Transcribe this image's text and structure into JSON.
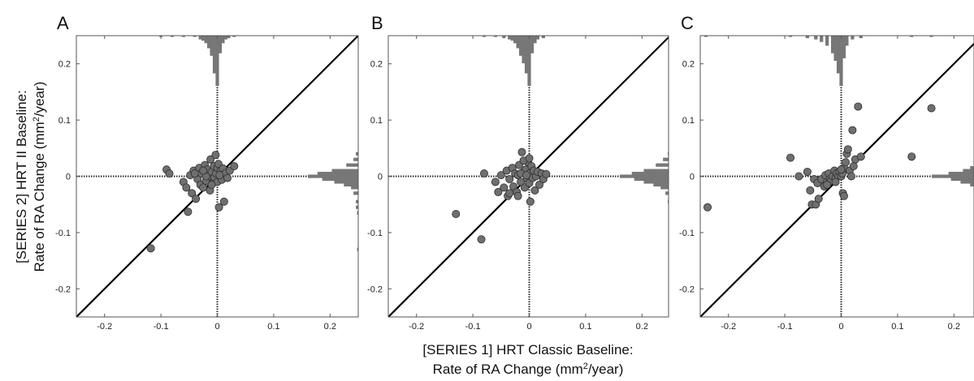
{
  "figure": {
    "x_title_line1": "[SERIES 1] HRT Classic Baseline:",
    "x_title_line2_prefix": "Rate of RA Change (mm",
    "x_title_line2_suffix": "/year)",
    "y_title_line1": "[SERIES 2] HRT II Baseline:",
    "y_title_line2_prefix": "Rate of RA Change (mm",
    "y_title_line2_suffix": "/year)",
    "unit_exponent": "2"
  },
  "chart_data": [
    {
      "type": "scatter",
      "panel_label": "A",
      "xlim": [
        -0.25,
        0.25
      ],
      "ylim": [
        -0.25,
        0.25
      ],
      "x_ticks": [
        -0.2,
        -0.1,
        0,
        0.1,
        0.2
      ],
      "y_ticks": [
        -0.2,
        -0.1,
        0,
        0.1,
        0.2
      ],
      "x_tick_labels": [
        "-0.2",
        "-0.1",
        "0",
        "0.1",
        "0.2"
      ],
      "y_tick_labels": [
        "-0.2",
        "-0.1",
        "0",
        "0.1",
        "0.2"
      ],
      "reference_line": "y = x",
      "grid": false,
      "points": [
        [
          -0.118,
          -0.128
        ],
        [
          -0.09,
          0.012
        ],
        [
          -0.085,
          0.005
        ],
        [
          -0.06,
          -0.01
        ],
        [
          -0.055,
          -0.02
        ],
        [
          -0.052,
          -0.063
        ],
        [
          -0.048,
          0.002
        ],
        [
          -0.045,
          -0.03
        ],
        [
          -0.042,
          0.01
        ],
        [
          -0.038,
          -0.04
        ],
        [
          -0.035,
          -0.005
        ],
        [
          -0.032,
          0.015
        ],
        [
          -0.03,
          -0.015
        ],
        [
          -0.028,
          0.005
        ],
        [
          -0.025,
          -0.02
        ],
        [
          -0.022,
          0.02
        ],
        [
          -0.02,
          -0.008
        ],
        [
          -0.018,
          0.012
        ],
        [
          -0.015,
          0.0
        ],
        [
          -0.013,
          -0.025
        ],
        [
          -0.012,
          0.03
        ],
        [
          -0.01,
          0.008
        ],
        [
          -0.008,
          -0.012
        ],
        [
          -0.006,
          0.018
        ],
        [
          -0.005,
          -0.002
        ],
        [
          -0.003,
          0.038
        ],
        [
          -0.002,
          0.005
        ],
        [
          0.0,
          -0.01
        ],
        [
          0.0,
          0.015
        ],
        [
          0.002,
          0.022
        ],
        [
          0.003,
          -0.055
        ],
        [
          0.005,
          0.0
        ],
        [
          0.006,
          0.01
        ],
        [
          0.008,
          -0.006
        ],
        [
          0.01,
          0.014
        ],
        [
          0.012,
          -0.045
        ],
        [
          0.015,
          0.006
        ],
        [
          0.018,
          -0.003
        ],
        [
          0.022,
          0.01
        ],
        [
          0.03,
          0.018
        ],
        [
          -0.02,
          0.0
        ],
        [
          -0.01,
          -0.015
        ],
        [
          -0.04,
          0.005
        ],
        [
          -0.025,
          0.01
        ],
        [
          0.004,
          0.002
        ]
      ],
      "top_histogram": [
        {
          "center": -0.1,
          "count": 1
        },
        {
          "center": -0.08,
          "count": 1
        },
        {
          "center": -0.06,
          "count": 1
        },
        {
          "center": -0.04,
          "count": 1
        },
        {
          "center": -0.03,
          "count": 3
        },
        {
          "center": -0.025,
          "count": 4
        },
        {
          "center": -0.02,
          "count": 6
        },
        {
          "center": -0.015,
          "count": 10
        },
        {
          "center": -0.01,
          "count": 16
        },
        {
          "center": -0.005,
          "count": 30
        },
        {
          "center": 0.0,
          "count": 40
        },
        {
          "center": 0.005,
          "count": 14
        },
        {
          "center": 0.01,
          "count": 6
        },
        {
          "center": 0.015,
          "count": 3
        },
        {
          "center": 0.02,
          "count": 2
        },
        {
          "center": 0.03,
          "count": 1
        }
      ],
      "right_histogram": [
        {
          "center": 0.04,
          "count": 2
        },
        {
          "center": 0.03,
          "count": 4
        },
        {
          "center": 0.02,
          "count": 10
        },
        {
          "center": 0.01,
          "count": 22
        },
        {
          "center": 0.005,
          "count": 34
        },
        {
          "center": 0.0,
          "count": 42
        },
        {
          "center": -0.005,
          "count": 30
        },
        {
          "center": -0.01,
          "count": 20
        },
        {
          "center": -0.015,
          "count": 12
        },
        {
          "center": -0.02,
          "count": 6
        },
        {
          "center": -0.03,
          "count": 4
        },
        {
          "center": -0.045,
          "count": 2
        },
        {
          "center": -0.055,
          "count": 2
        },
        {
          "center": -0.065,
          "count": 1
        },
        {
          "center": -0.13,
          "count": 1
        }
      ]
    },
    {
      "type": "scatter",
      "panel_label": "B",
      "xlim": [
        -0.25,
        0.25
      ],
      "ylim": [
        -0.25,
        0.25
      ],
      "x_ticks": [
        -0.2,
        -0.1,
        0,
        0.1,
        0.2
      ],
      "y_ticks": [
        -0.2,
        -0.1,
        0,
        0.1,
        0.2
      ],
      "x_tick_labels": [
        "-0.2",
        "-0.1",
        "0",
        "0.1",
        "0.2"
      ],
      "y_tick_labels": [
        "-0.2",
        "-0.1",
        "0",
        "0.1",
        "0.2"
      ],
      "reference_line": "y = x",
      "grid": false,
      "points": [
        [
          -0.13,
          -0.067
        ],
        [
          -0.085,
          -0.112
        ],
        [
          -0.08,
          0.005
        ],
        [
          -0.06,
          -0.01
        ],
        [
          -0.055,
          -0.028
        ],
        [
          -0.05,
          0.002
        ],
        [
          -0.045,
          -0.02
        ],
        [
          -0.04,
          0.01
        ],
        [
          -0.038,
          -0.035
        ],
        [
          -0.035,
          -0.005
        ],
        [
          -0.03,
          0.015
        ],
        [
          -0.028,
          -0.018
        ],
        [
          -0.025,
          0.005
        ],
        [
          -0.022,
          -0.028
        ],
        [
          -0.02,
          0.002
        ],
        [
          -0.018,
          0.02
        ],
        [
          -0.015,
          -0.01
        ],
        [
          -0.013,
          0.043
        ],
        [
          -0.01,
          0.008
        ],
        [
          -0.008,
          -0.02
        ],
        [
          -0.006,
          0.012
        ],
        [
          -0.004,
          -0.004
        ],
        [
          -0.002,
          0.025
        ],
        [
          0.0,
          -0.012
        ],
        [
          0.0,
          0.005
        ],
        [
          0.002,
          -0.045
        ],
        [
          0.004,
          0.018
        ],
        [
          0.006,
          -0.003
        ],
        [
          0.008,
          0.01
        ],
        [
          0.01,
          -0.025
        ],
        [
          0.012,
          0.0
        ],
        [
          0.015,
          0.008
        ],
        [
          0.018,
          -0.015
        ],
        [
          0.022,
          0.005
        ],
        [
          0.025,
          -0.005
        ],
        [
          0.03,
          0.004
        ],
        [
          -0.035,
          -0.03
        ],
        [
          -0.02,
          -0.035
        ],
        [
          -0.01,
          0.028
        ],
        [
          0.0,
          0.032
        ],
        [
          -0.015,
          0.005
        ],
        [
          -0.005,
          0.002
        ]
      ],
      "top_histogram": [
        {
          "center": -0.08,
          "count": 1
        },
        {
          "center": -0.06,
          "count": 1
        },
        {
          "center": -0.045,
          "count": 2
        },
        {
          "center": -0.035,
          "count": 3
        },
        {
          "center": -0.03,
          "count": 4
        },
        {
          "center": -0.025,
          "count": 6
        },
        {
          "center": -0.02,
          "count": 10
        },
        {
          "center": -0.015,
          "count": 16
        },
        {
          "center": -0.01,
          "count": 22
        },
        {
          "center": -0.005,
          "count": 30
        },
        {
          "center": 0.0,
          "count": 40
        },
        {
          "center": 0.005,
          "count": 14
        },
        {
          "center": 0.01,
          "count": 6
        },
        {
          "center": 0.015,
          "count": 3
        },
        {
          "center": 0.025,
          "count": 2
        }
      ],
      "right_histogram": [
        {
          "center": 0.04,
          "count": 2
        },
        {
          "center": 0.03,
          "count": 6
        },
        {
          "center": 0.02,
          "count": 12
        },
        {
          "center": 0.01,
          "count": 22
        },
        {
          "center": 0.005,
          "count": 32
        },
        {
          "center": 0.0,
          "count": 42
        },
        {
          "center": -0.005,
          "count": 30
        },
        {
          "center": -0.01,
          "count": 22
        },
        {
          "center": -0.015,
          "count": 14
        },
        {
          "center": -0.02,
          "count": 8
        },
        {
          "center": -0.03,
          "count": 4
        },
        {
          "center": -0.045,
          "count": 2
        },
        {
          "center": -0.07,
          "count": 1
        },
        {
          "center": -0.11,
          "count": 1
        }
      ]
    },
    {
      "type": "scatter",
      "panel_label": "C",
      "xlim": [
        -0.25,
        0.25
      ],
      "ylim": [
        -0.25,
        0.25
      ],
      "x_ticks": [
        -0.2,
        -0.1,
        0,
        0.1,
        0.2
      ],
      "y_ticks": [
        -0.2,
        -0.1,
        0,
        0.1,
        0.2
      ],
      "x_tick_labels": [
        "-0.2",
        "-0.1",
        "0",
        "0.1",
        "0.2"
      ],
      "y_tick_labels": [
        "-0.2",
        "-0.1",
        "0",
        "0.1",
        "0.2"
      ],
      "reference_line": "y = x",
      "grid": false,
      "points": [
        [
          -0.237,
          -0.055
        ],
        [
          -0.09,
          0.033
        ],
        [
          -0.075,
          0.0
        ],
        [
          -0.06,
          0.008
        ],
        [
          -0.055,
          -0.025
        ],
        [
          -0.052,
          -0.05
        ],
        [
          -0.048,
          -0.005
        ],
        [
          -0.045,
          -0.05
        ],
        [
          -0.042,
          -0.012
        ],
        [
          -0.04,
          -0.04
        ],
        [
          -0.035,
          -0.005
        ],
        [
          -0.03,
          -0.018
        ],
        [
          -0.028,
          0.002
        ],
        [
          -0.025,
          -0.01
        ],
        [
          -0.022,
          0.005
        ],
        [
          -0.02,
          -0.005
        ],
        [
          -0.018,
          -0.008
        ],
        [
          -0.015,
          0.0
        ],
        [
          -0.012,
          0.01
        ],
        [
          -0.01,
          -0.003
        ],
        [
          -0.008,
          0.005
        ],
        [
          -0.005,
          0.0
        ],
        [
          -0.003,
          0.008
        ],
        [
          0.0,
          0.0
        ],
        [
          0.002,
          0.005
        ],
        [
          0.003,
          -0.03
        ],
        [
          0.005,
          0.015
        ],
        [
          0.008,
          0.025
        ],
        [
          0.01,
          0.04
        ],
        [
          0.012,
          0.048
        ],
        [
          0.015,
          0.01
        ],
        [
          0.018,
          0.0
        ],
        [
          0.02,
          0.082
        ],
        [
          0.022,
          0.018
        ],
        [
          0.025,
          0.03
        ],
        [
          0.03,
          0.124
        ],
        [
          0.035,
          0.035
        ],
        [
          0.125,
          0.035
        ],
        [
          0.16,
          0.121
        ],
        [
          -0.025,
          -0.015
        ],
        [
          -0.01,
          -0.01
        ],
        [
          0.005,
          -0.035
        ],
        [
          0.0,
          0.012
        ]
      ],
      "top_histogram": [
        {
          "center": -0.24,
          "count": 1
        },
        {
          "center": -0.09,
          "count": 1
        },
        {
          "center": -0.06,
          "count": 2
        },
        {
          "center": -0.045,
          "count": 3
        },
        {
          "center": -0.035,
          "count": 5
        },
        {
          "center": -0.025,
          "count": 8
        },
        {
          "center": -0.015,
          "count": 14
        },
        {
          "center": -0.01,
          "count": 20
        },
        {
          "center": -0.005,
          "count": 30
        },
        {
          "center": 0.0,
          "count": 40
        },
        {
          "center": 0.005,
          "count": 18
        },
        {
          "center": 0.01,
          "count": 8
        },
        {
          "center": 0.02,
          "count": 3
        },
        {
          "center": 0.035,
          "count": 2
        },
        {
          "center": 0.125,
          "count": 1
        },
        {
          "center": 0.16,
          "count": 1
        }
      ],
      "right_histogram": [
        {
          "center": 0.125,
          "count": 1
        },
        {
          "center": 0.12,
          "count": 1
        },
        {
          "center": 0.08,
          "count": 1
        },
        {
          "center": 0.045,
          "count": 2
        },
        {
          "center": 0.035,
          "count": 3
        },
        {
          "center": 0.025,
          "count": 4
        },
        {
          "center": 0.015,
          "count": 10
        },
        {
          "center": 0.01,
          "count": 16
        },
        {
          "center": 0.005,
          "count": 28
        },
        {
          "center": 0.0,
          "count": 42
        },
        {
          "center": -0.005,
          "count": 26
        },
        {
          "center": -0.01,
          "count": 18
        },
        {
          "center": -0.015,
          "count": 10
        },
        {
          "center": -0.025,
          "count": 6
        },
        {
          "center": -0.035,
          "count": 4
        },
        {
          "center": -0.05,
          "count": 2
        },
        {
          "center": -0.055,
          "count": 1
        }
      ]
    }
  ]
}
